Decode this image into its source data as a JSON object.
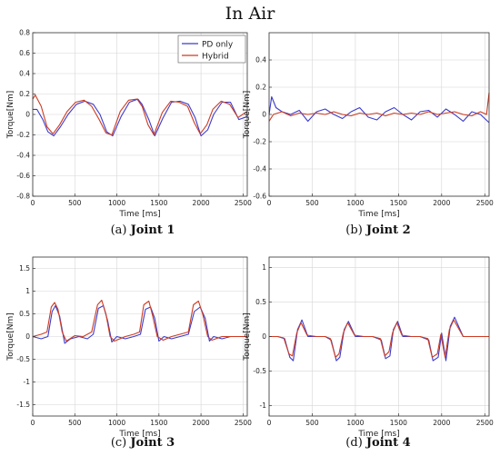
{
  "figure": {
    "title": "In Air",
    "captions": [
      {
        "prefix": "(a) ",
        "label": "Joint 1"
      },
      {
        "prefix": "(b) ",
        "label": "Joint 2"
      },
      {
        "prefix": "(c) ",
        "label": "Joint 3"
      },
      {
        "prefix": "(d) ",
        "label": "Joint 4"
      }
    ]
  },
  "colors": {
    "pd_only": "#3b3bcc",
    "hybrid": "#cc3b22",
    "grid": "#d6d6d6",
    "axis": "#333333"
  },
  "chart_data": [
    {
      "type": "line",
      "xlabel": "Time [ms]",
      "ylabel": "Torque[Nm]",
      "xlim": [
        0,
        2550
      ],
      "ylim": [
        -0.8,
        0.8
      ],
      "xticks": [
        0,
        500,
        1000,
        1500,
        2000,
        2500
      ],
      "yticks": [
        -0.8,
        -0.6,
        -0.4,
        -0.2,
        0,
        0.2,
        0.4,
        0.6,
        0.8
      ],
      "grid": true,
      "legend": "top-right",
      "series": [
        {
          "name": "PD only",
          "color": "#3b3bcc",
          "x": [
            0,
            50,
            120,
            180,
            250,
            330,
            420,
            520,
            620,
            720,
            800,
            880,
            950,
            1050,
            1150,
            1250,
            1300,
            1380,
            1450,
            1550,
            1650,
            1750,
            1850,
            1930,
            2000,
            2080,
            2150,
            2250,
            2350,
            2450,
            2550
          ],
          "y": [
            0.05,
            0.05,
            -0.05,
            -0.17,
            -0.21,
            -0.12,
            0.0,
            0.1,
            0.13,
            0.1,
            0.0,
            -0.17,
            -0.21,
            -0.02,
            0.12,
            0.15,
            0.1,
            -0.05,
            -0.21,
            -0.03,
            0.12,
            0.13,
            0.1,
            -0.03,
            -0.21,
            -0.15,
            0.0,
            0.12,
            0.12,
            -0.05,
            -0.02
          ]
        },
        {
          "name": "Hybrid",
          "color": "#cc3b22",
          "x": [
            0,
            30,
            100,
            170,
            240,
            320,
            410,
            510,
            610,
            700,
            790,
            870,
            940,
            1040,
            1140,
            1240,
            1300,
            1370,
            1440,
            1540,
            1640,
            1740,
            1840,
            1920,
            1990,
            2070,
            2140,
            2240,
            2340,
            2440,
            2550
          ],
          "y": [
            0.15,
            0.19,
            0.08,
            -0.12,
            -0.19,
            -0.1,
            0.03,
            0.12,
            0.14,
            0.08,
            -0.05,
            -0.18,
            -0.2,
            0.03,
            0.14,
            0.15,
            0.08,
            -0.1,
            -0.2,
            0.02,
            0.13,
            0.12,
            0.08,
            -0.08,
            -0.19,
            -0.1,
            0.05,
            0.13,
            0.1,
            -0.03,
            0.03
          ]
        }
      ]
    },
    {
      "type": "line",
      "xlabel": "Time [ms]",
      "ylabel": "Torque[Nm]",
      "xlim": [
        0,
        2550
      ],
      "ylim": [
        -0.6,
        0.6
      ],
      "xticks": [
        0,
        500,
        1000,
        1500,
        2000,
        2500
      ],
      "yticks": [
        -0.6,
        -0.4,
        -0.2,
        0,
        0.2,
        0.4
      ],
      "grid": true,
      "series": [
        {
          "name": "PD only",
          "color": "#3b3bcc",
          "x": [
            0,
            30,
            80,
            150,
            250,
            350,
            450,
            550,
            650,
            750,
            850,
            950,
            1050,
            1150,
            1250,
            1350,
            1450,
            1550,
            1650,
            1750,
            1850,
            1950,
            2050,
            2150,
            2250,
            2350,
            2450,
            2550
          ],
          "y": [
            0.0,
            0.13,
            0.05,
            0.02,
            0.0,
            0.03,
            -0.05,
            0.02,
            0.04,
            0.0,
            -0.03,
            0.02,
            0.05,
            -0.02,
            -0.04,
            0.02,
            0.05,
            0.0,
            -0.04,
            0.02,
            0.03,
            -0.02,
            0.04,
            0.0,
            -0.05,
            0.02,
            0.0,
            -0.06
          ]
        },
        {
          "name": "Hybrid",
          "color": "#cc3b22",
          "x": [
            0,
            50,
            150,
            250,
            350,
            450,
            550,
            650,
            750,
            850,
            950,
            1050,
            1150,
            1250,
            1350,
            1450,
            1550,
            1650,
            1750,
            1850,
            1950,
            2050,
            2150,
            2250,
            2350,
            2450,
            2520,
            2550
          ],
          "y": [
            -0.05,
            0.0,
            0.02,
            -0.01,
            0.01,
            0.0,
            0.01,
            0.0,
            0.02,
            0.0,
            -0.01,
            0.01,
            0.0,
            0.01,
            -0.01,
            0.01,
            0.0,
            0.01,
            0.0,
            0.02,
            0.0,
            0.01,
            0.02,
            0.0,
            -0.01,
            0.02,
            0.0,
            0.16
          ]
        }
      ]
    },
    {
      "type": "line",
      "xlabel": "Time [ms]",
      "ylabel": "Torque[Nm]",
      "xlim": [
        0,
        2550
      ],
      "ylim": [
        -1.75,
        1.75
      ],
      "xticks": [
        0,
        500,
        1000,
        1500,
        2000,
        2500
      ],
      "yticks": [
        -1.5,
        -1,
        -0.5,
        0,
        0.5,
        1,
        1.5
      ],
      "grid": true,
      "series": [
        {
          "name": "PD only",
          "color": "#3b3bcc",
          "x": [
            0,
            100,
            180,
            230,
            270,
            320,
            380,
            450,
            550,
            650,
            720,
            780,
            840,
            890,
            940,
            1000,
            1100,
            1200,
            1280,
            1340,
            1400,
            1450,
            1500,
            1560,
            1650,
            1750,
            1850,
            1920,
            1990,
            2050,
            2100,
            2150,
            2250,
            2350,
            2450,
            2550
          ],
          "y": [
            0.0,
            -0.05,
            0.0,
            0.55,
            0.68,
            0.45,
            -0.15,
            -0.05,
            0.0,
            -0.05,
            0.05,
            0.62,
            0.68,
            0.35,
            -0.12,
            0.0,
            -0.05,
            0.0,
            0.05,
            0.6,
            0.65,
            0.4,
            -0.1,
            0.0,
            -0.05,
            0.0,
            0.05,
            0.55,
            0.65,
            0.4,
            -0.1,
            0.0,
            -0.05,
            0.0,
            0.0,
            0.0
          ]
        },
        {
          "name": "Hybrid",
          "color": "#cc3b22",
          "x": [
            0,
            100,
            170,
            220,
            260,
            300,
            350,
            400,
            500,
            600,
            700,
            770,
            820,
            870,
            920,
            970,
            1100,
            1200,
            1270,
            1320,
            1380,
            1420,
            1480,
            1550,
            1650,
            1750,
            1850,
            1910,
            1970,
            2020,
            2080,
            2130,
            2250,
            2350,
            2450,
            2550
          ],
          "y": [
            0.0,
            0.05,
            0.1,
            0.65,
            0.75,
            0.6,
            0.1,
            -0.1,
            0.02,
            0.0,
            0.1,
            0.7,
            0.8,
            0.5,
            0.0,
            -0.1,
            0.0,
            0.05,
            0.1,
            0.7,
            0.78,
            0.5,
            0.0,
            -0.08,
            0.0,
            0.05,
            0.1,
            0.7,
            0.78,
            0.5,
            0.0,
            -0.08,
            0.0,
            0.0,
            0.0,
            0.0
          ]
        }
      ]
    },
    {
      "type": "line",
      "xlabel": "Time [ms]",
      "ylabel": "Torque[Nm]",
      "xlim": [
        0,
        2550
      ],
      "ylim": [
        -1.15,
        1.15
      ],
      "xticks": [
        0,
        500,
        1000,
        1500,
        2000,
        2500
      ],
      "yticks": [
        -1,
        -0.5,
        0,
        0.5,
        1
      ],
      "grid": true,
      "series": [
        {
          "name": "PD only",
          "color": "#3b3bcc",
          "x": [
            0,
            100,
            180,
            240,
            280,
            330,
            380,
            450,
            550,
            650,
            720,
            780,
            820,
            870,
            920,
            1000,
            1100,
            1200,
            1300,
            1350,
            1400,
            1440,
            1490,
            1550,
            1650,
            1750,
            1850,
            1900,
            1960,
            2000,
            2050,
            2100,
            2150,
            2250,
            2350,
            2450,
            2550
          ],
          "y": [
            0.0,
            0.0,
            -0.03,
            -0.3,
            -0.35,
            0.1,
            0.24,
            0.0,
            0.0,
            0.0,
            -0.05,
            -0.35,
            -0.3,
            0.1,
            0.22,
            0.0,
            0.0,
            0.0,
            -0.05,
            -0.32,
            -0.28,
            0.1,
            0.22,
            0.0,
            0.0,
            0.0,
            -0.05,
            -0.35,
            -0.3,
            0.05,
            -0.35,
            0.15,
            0.28,
            0.0,
            0.0,
            0.0,
            0.0
          ]
        },
        {
          "name": "Hybrid",
          "color": "#cc3b22",
          "x": [
            0,
            100,
            170,
            230,
            270,
            320,
            370,
            440,
            550,
            650,
            710,
            770,
            810,
            860,
            910,
            990,
            1100,
            1200,
            1290,
            1340,
            1390,
            1430,
            1480,
            1540,
            1650,
            1750,
            1840,
            1890,
            1950,
            1990,
            2040,
            2090,
            2140,
            2250,
            2350,
            2450,
            2550
          ],
          "y": [
            0.0,
            0.0,
            -0.02,
            -0.25,
            -0.28,
            0.05,
            0.2,
            0.02,
            0.0,
            0.0,
            -0.03,
            -0.3,
            -0.25,
            0.05,
            0.2,
            0.02,
            0.0,
            0.0,
            -0.03,
            -0.28,
            -0.22,
            0.05,
            0.2,
            0.02,
            0.0,
            0.0,
            -0.03,
            -0.3,
            -0.25,
            0.03,
            -0.3,
            0.1,
            0.24,
            0.0,
            0.0,
            0.0,
            0.0
          ]
        }
      ]
    }
  ]
}
